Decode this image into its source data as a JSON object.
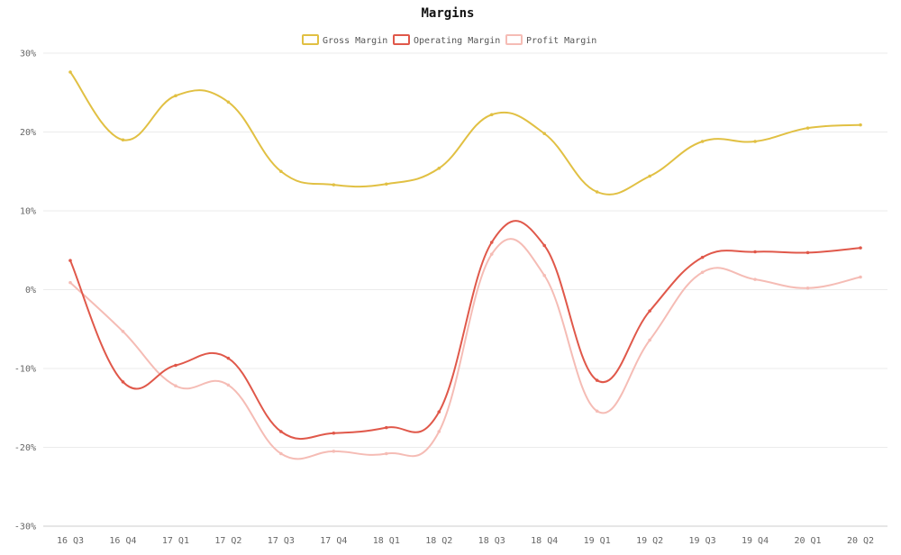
{
  "chart_data": {
    "type": "line",
    "title": "Margins",
    "xlabel": "",
    "ylabel": "",
    "ylim": [
      -30,
      30
    ],
    "yticks": [
      30,
      20,
      10,
      0,
      -10,
      -20,
      -30
    ],
    "ytick_labels": [
      "30%",
      "20%",
      "10%",
      "0%",
      "-10%",
      "-20%",
      "-30%"
    ],
    "legend_position": "top-center",
    "grid": true,
    "categories": [
      "16 Q3",
      "16 Q4",
      "17 Q1",
      "17 Q2",
      "17 Q3",
      "17 Q4",
      "18 Q1",
      "18 Q2",
      "18 Q3",
      "18 Q4",
      "19 Q1",
      "19 Q2",
      "19 Q3",
      "19 Q4",
      "20 Q1",
      "20 Q2"
    ],
    "series": [
      {
        "name": "Gross Margin",
        "color": "#e1c043",
        "values": [
          27.6,
          19.0,
          24.6,
          23.8,
          15.0,
          13.3,
          13.4,
          15.4,
          22.2,
          19.8,
          12.4,
          14.4,
          18.8,
          18.8,
          20.5,
          20.9
        ]
      },
      {
        "name": "Operating Margin",
        "color": "#e0584a",
        "values": [
          3.7,
          -11.7,
          -9.6,
          -8.7,
          -18.0,
          -18.2,
          -17.5,
          -15.5,
          6.0,
          5.6,
          -11.5,
          -2.7,
          4.1,
          4.8,
          4.7,
          5.3
        ]
      },
      {
        "name": "Profit Margin",
        "color": "#f5bcb5",
        "values": [
          0.9,
          -5.3,
          -12.2,
          -12.1,
          -20.8,
          -20.5,
          -20.8,
          -18.0,
          4.5,
          1.8,
          -15.4,
          -6.4,
          2.2,
          1.3,
          0.2,
          1.6
        ]
      }
    ]
  }
}
